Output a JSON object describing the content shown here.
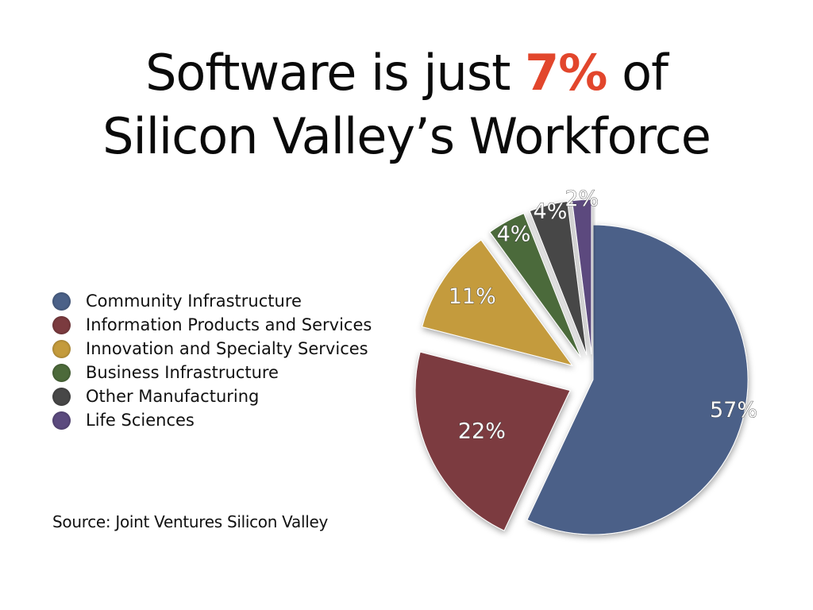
{
  "title": {
    "line1_prefix": "Software is just ",
    "line1_highlight": "7%",
    "line1_suffix": " of",
    "line2": "Silicon Valley’s Workforce"
  },
  "source": "Source: Joint Ventures Silicon Valley",
  "colors": {
    "highlight": "#e2462c"
  },
  "chart_data": {
    "type": "pie",
    "title": "Software is just 7% of Silicon Valley’s Workforce",
    "legend_position": "left",
    "categories": [
      "Community Infrastructure",
      "Information Products and Services",
      "Innovation and Specialty Services",
      "Business Infrastructure",
      "Other Manufacturing",
      "Life Sciences"
    ],
    "values": [
      57,
      22,
      11,
      4,
      4,
      2
    ],
    "labels": [
      "57%",
      "22%",
      "11%",
      "4%",
      "4%",
      "2%"
    ],
    "colors": [
      "#4b6188",
      "#7b3b3f",
      "#c49b3c",
      "#4c6a3a",
      "#474747",
      "#5b4a7e"
    ],
    "exploded": true
  }
}
